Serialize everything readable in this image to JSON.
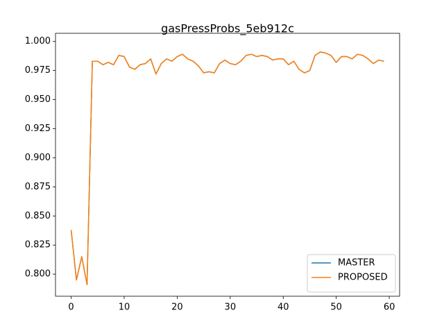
{
  "chart_data": {
    "type": "line",
    "title": "gasPressProbs_5eb912c",
    "x": [
      0,
      1,
      2,
      3,
      4,
      5,
      6,
      7,
      8,
      9,
      10,
      11,
      12,
      13,
      14,
      15,
      16,
      17,
      18,
      19,
      20,
      21,
      22,
      23,
      24,
      25,
      26,
      27,
      28,
      29,
      30,
      31,
      32,
      33,
      34,
      35,
      36,
      37,
      38,
      39,
      40,
      41,
      42,
      43,
      44,
      45,
      46,
      47,
      48,
      49,
      50,
      51,
      52,
      53,
      54,
      55,
      56,
      57,
      58,
      59
    ],
    "series": [
      {
        "name": "MASTER",
        "color": "#1f77b4",
        "values": [
          0.838,
          0.795,
          0.815,
          0.791,
          0.983,
          0.983,
          0.98,
          0.982,
          0.98,
          0.988,
          0.987,
          0.978,
          0.976,
          0.98,
          0.981,
          0.985,
          0.972,
          0.981,
          0.985,
          0.983,
          0.987,
          0.989,
          0.985,
          0.983,
          0.979,
          0.973,
          0.974,
          0.973,
          0.981,
          0.984,
          0.981,
          0.98,
          0.983,
          0.988,
          0.989,
          0.987,
          0.988,
          0.987,
          0.984,
          0.985,
          0.985,
          0.98,
          0.983,
          0.976,
          0.973,
          0.975,
          0.988,
          0.991,
          0.99,
          0.988,
          0.982,
          0.987,
          0.987,
          0.985,
          0.989,
          0.988,
          0.985,
          0.981,
          0.984,
          0.983
        ]
      },
      {
        "name": "PROPOSED",
        "color": "#ff7f0e",
        "values": [
          0.838,
          0.795,
          0.815,
          0.791,
          0.983,
          0.983,
          0.98,
          0.982,
          0.98,
          0.988,
          0.987,
          0.978,
          0.976,
          0.98,
          0.981,
          0.985,
          0.972,
          0.981,
          0.985,
          0.983,
          0.987,
          0.989,
          0.985,
          0.983,
          0.979,
          0.973,
          0.974,
          0.973,
          0.981,
          0.984,
          0.981,
          0.98,
          0.983,
          0.988,
          0.989,
          0.987,
          0.988,
          0.987,
          0.984,
          0.985,
          0.985,
          0.98,
          0.983,
          0.976,
          0.973,
          0.975,
          0.988,
          0.991,
          0.99,
          0.988,
          0.982,
          0.987,
          0.987,
          0.985,
          0.989,
          0.988,
          0.985,
          0.981,
          0.984,
          0.983
        ]
      }
    ],
    "xlim": [
      -2.95,
      61.95
    ],
    "xticks": [
      0,
      10,
      20,
      30,
      40,
      50,
      60
    ],
    "ylim": [
      0.781,
      1.007
    ],
    "yticks": [
      {
        "value": 0.8,
        "label": "0.800"
      },
      {
        "value": 0.825,
        "label": "0.825"
      },
      {
        "value": 0.85,
        "label": "0.850"
      },
      {
        "value": 0.875,
        "label": "0.875"
      },
      {
        "value": 0.9,
        "label": "0.900"
      },
      {
        "value": 0.925,
        "label": "0.925"
      },
      {
        "value": 0.95,
        "label": "0.950"
      },
      {
        "value": 0.975,
        "label": "0.975"
      },
      {
        "value": 1.0,
        "label": "1.000"
      }
    ],
    "legend": "lower right",
    "grid": false
  }
}
